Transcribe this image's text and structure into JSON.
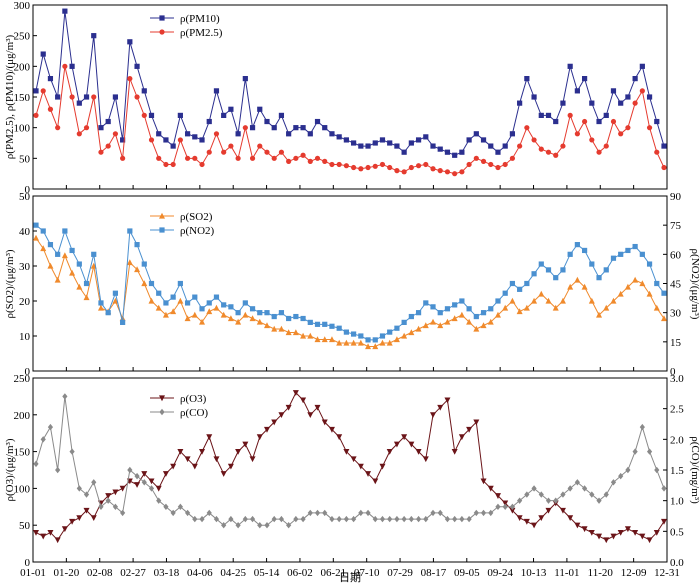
{
  "chart_data": [
    {
      "type": "line",
      "panel": "particulate",
      "x_ticks": [
        "01-01",
        "01-20",
        "02-08",
        "02-27",
        "03-18",
        "04-06",
        "04-25",
        "05-14",
        "06-02",
        "06-21",
        "07-10",
        "07-29",
        "08-17",
        "09-05",
        "09-24",
        "10-13",
        "11-01",
        "11-20",
        "12-09",
        "12-31"
      ],
      "ylabel": "ρ(PM2.5), ρ(PM10)/(μg/m³)",
      "ylim": [
        0,
        300
      ],
      "y_ticks": [
        0,
        50,
        100,
        150,
        200,
        250,
        300
      ],
      "series": [
        {
          "name": "ρ(PM10)",
          "color": "#2b2f8f",
          "marker": "square",
          "values": [
            160,
            220,
            180,
            150,
            290,
            200,
            140,
            150,
            250,
            100,
            110,
            150,
            80,
            240,
            200,
            160,
            120,
            90,
            80,
            70,
            120,
            90,
            85,
            80,
            110,
            160,
            120,
            130,
            90,
            180,
            100,
            130,
            110,
            100,
            120,
            90,
            100,
            100,
            90,
            110,
            100,
            90,
            85,
            80,
            75,
            70,
            70,
            75,
            80,
            75,
            70,
            60,
            75,
            80,
            85,
            70,
            65,
            60,
            55,
            60,
            80,
            90,
            80,
            70,
            60,
            70,
            90,
            140,
            180,
            150,
            120,
            120,
            110,
            140,
            200,
            160,
            180,
            140,
            110,
            120,
            160,
            140,
            150,
            180,
            200,
            150,
            110,
            70
          ]
        },
        {
          "name": "ρ(PM2.5)",
          "color": "#e53b2f",
          "marker": "circle",
          "values": [
            120,
            160,
            130,
            100,
            200,
            150,
            90,
            100,
            150,
            60,
            70,
            90,
            50,
            180,
            150,
            120,
            80,
            50,
            40,
            40,
            80,
            50,
            50,
            40,
            60,
            90,
            60,
            70,
            50,
            100,
            50,
            70,
            60,
            50,
            60,
            45,
            50,
            55,
            45,
            50,
            45,
            40,
            40,
            38,
            35,
            33,
            35,
            37,
            40,
            35,
            30,
            28,
            35,
            38,
            40,
            33,
            30,
            28,
            25,
            28,
            40,
            50,
            45,
            40,
            35,
            40,
            50,
            70,
            100,
            80,
            65,
            60,
            55,
            70,
            120,
            90,
            110,
            80,
            60,
            70,
            110,
            90,
            100,
            140,
            160,
            100,
            60,
            35
          ]
        }
      ],
      "legend_position": "top-left"
    },
    {
      "type": "line",
      "panel": "gases",
      "x_ticks": [
        "01-01",
        "01-20",
        "02-08",
        "02-27",
        "03-18",
        "04-06",
        "04-25",
        "05-14",
        "06-02",
        "06-21",
        "07-10",
        "07-29",
        "08-17",
        "09-05",
        "09-24",
        "10-13",
        "11-01",
        "11-20",
        "12-09",
        "12-31"
      ],
      "ylabel_left": "ρ(SO2)/(μg/m³)",
      "ylabel_right": "ρ(NO2)/(μg/m³)",
      "ylim_left": [
        0,
        50
      ],
      "ylim_right": [
        0,
        90
      ],
      "y_ticks_left": [
        0,
        10,
        20,
        30,
        40,
        50
      ],
      "y_ticks_right": [
        0,
        15,
        30,
        45,
        60,
        75,
        90
      ],
      "series": [
        {
          "name": "ρ(SO2)",
          "axis": "left",
          "color": "#f08a2c",
          "marker": "triangle",
          "values": [
            38,
            35,
            30,
            26,
            33,
            28,
            24,
            21,
            30,
            18,
            17,
            20,
            15,
            31,
            29,
            25,
            20,
            18,
            16,
            17,
            20,
            15,
            16,
            14,
            17,
            18,
            16,
            15,
            14,
            16,
            15,
            14,
            13,
            12,
            12,
            11,
            11,
            10,
            10,
            9,
            9,
            9,
            8,
            8,
            8,
            8,
            7,
            7,
            8,
            8,
            9,
            10,
            11,
            12,
            13,
            14,
            13,
            14,
            15,
            16,
            14,
            12,
            13,
            14,
            16,
            18,
            20,
            17,
            18,
            20,
            22,
            20,
            18,
            20,
            24,
            26,
            24,
            20,
            16,
            18,
            20,
            22,
            24,
            26,
            25,
            22,
            18,
            15
          ]
        },
        {
          "name": "ρ(NO2)",
          "axis": "right",
          "color": "#4a90d0",
          "marker": "square",
          "values": [
            75,
            72,
            65,
            60,
            72,
            62,
            55,
            45,
            60,
            35,
            30,
            40,
            25,
            72,
            65,
            55,
            45,
            40,
            35,
            38,
            45,
            35,
            38,
            32,
            35,
            38,
            34,
            33,
            30,
            35,
            32,
            30,
            30,
            28,
            30,
            27,
            28,
            27,
            25,
            24,
            24,
            23,
            22,
            20,
            19,
            18,
            16,
            16,
            18,
            20,
            22,
            25,
            28,
            30,
            35,
            33,
            30,
            32,
            34,
            36,
            32,
            28,
            30,
            32,
            36,
            40,
            45,
            42,
            45,
            50,
            55,
            52,
            48,
            52,
            60,
            65,
            62,
            55,
            48,
            52,
            58,
            60,
            62,
            64,
            60,
            55,
            45,
            40
          ]
        }
      ],
      "legend_position": "top-left"
    },
    {
      "type": "line",
      "panel": "o3-co",
      "x_ticks": [
        "01-01",
        "01-20",
        "02-08",
        "02-27",
        "03-18",
        "04-06",
        "04-25",
        "05-14",
        "06-02",
        "06-21",
        "07-10",
        "07-29",
        "08-17",
        "09-05",
        "09-24",
        "10-13",
        "11-01",
        "11-20",
        "12-09",
        "12-31"
      ],
      "xlabel": "日期",
      "ylabel_left": "ρ(O3)/(μg/m³)",
      "ylabel_right": "ρ(CO)/(mg/m³)",
      "ylim_left": [
        0,
        250
      ],
      "ylim_right": [
        0,
        3.0
      ],
      "y_ticks_left": [
        0,
        50,
        100,
        150,
        200,
        250
      ],
      "y_ticks_right": [
        0,
        0.5,
        1.0,
        1.5,
        2.0,
        2.5,
        3.0
      ],
      "series": [
        {
          "name": "ρ(O3)",
          "axis": "left",
          "color": "#6b1418",
          "marker": "triangle-down",
          "values": [
            40,
            35,
            40,
            30,
            45,
            55,
            60,
            70,
            60,
            80,
            90,
            95,
            100,
            110,
            105,
            120,
            110,
            100,
            120,
            130,
            150,
            140,
            130,
            150,
            170,
            140,
            120,
            130,
            150,
            160,
            140,
            170,
            180,
            190,
            200,
            210,
            230,
            220,
            200,
            210,
            190,
            180,
            170,
            150,
            140,
            130,
            120,
            110,
            130,
            150,
            160,
            170,
            160,
            150,
            140,
            200,
            210,
            220,
            150,
            170,
            180,
            190,
            110,
            100,
            90,
            80,
            70,
            60,
            55,
            50,
            60,
            70,
            80,
            70,
            60,
            50,
            45,
            40,
            35,
            30,
            35,
            40,
            45,
            40,
            35,
            30,
            40,
            55
          ]
        },
        {
          "name": "ρ(CO)",
          "axis": "right",
          "color": "#8a8a8a",
          "marker": "diamond",
          "values": [
            1.6,
            2.0,
            2.2,
            1.5,
            2.7,
            1.8,
            1.2,
            1.1,
            1.3,
            0.9,
            1.0,
            0.9,
            0.8,
            1.5,
            1.4,
            1.3,
            1.2,
            1.0,
            0.9,
            0.8,
            0.9,
            0.8,
            0.7,
            0.7,
            0.8,
            0.7,
            0.6,
            0.7,
            0.6,
            0.7,
            0.7,
            0.6,
            0.6,
            0.7,
            0.7,
            0.6,
            0.7,
            0.7,
            0.8,
            0.8,
            0.8,
            0.7,
            0.7,
            0.7,
            0.7,
            0.8,
            0.8,
            0.7,
            0.7,
            0.7,
            0.7,
            0.7,
            0.7,
            0.7,
            0.7,
            0.8,
            0.8,
            0.7,
            0.7,
            0.7,
            0.7,
            0.8,
            0.8,
            0.8,
            0.9,
            0.9,
            0.9,
            1.0,
            1.1,
            1.2,
            1.1,
            1.0,
            1.0,
            1.1,
            1.2,
            1.3,
            1.2,
            1.1,
            1.0,
            1.1,
            1.3,
            1.4,
            1.5,
            1.8,
            2.2,
            1.8,
            1.5,
            1.2
          ]
        }
      ],
      "legend_position": "top-left"
    }
  ]
}
